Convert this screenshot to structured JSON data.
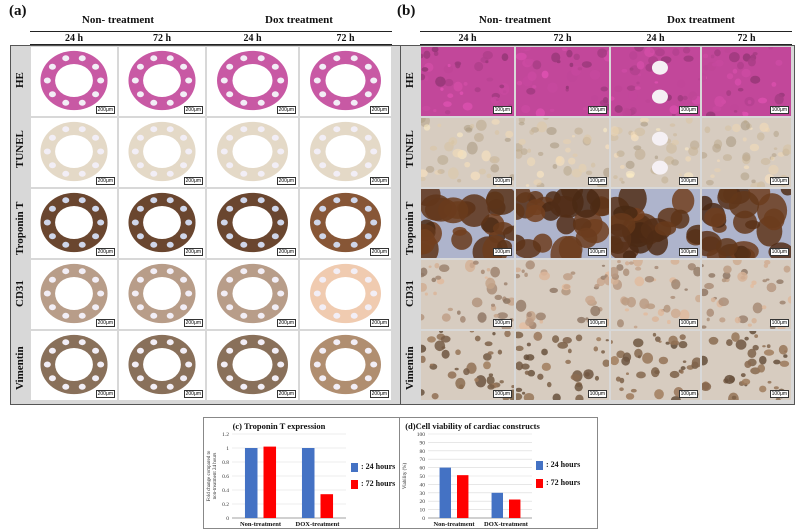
{
  "figure": {
    "panel_a_letter": "(a)",
    "panel_b_letter": "(b)",
    "group_labels": [
      "Non- treatment",
      "Dox treatment"
    ],
    "time_labels": [
      "24 h",
      "72 h",
      "24 h",
      "72 h"
    ],
    "row_labels": [
      "HE",
      "TUNEL",
      "Troponin T",
      "CD31",
      "Vimentin"
    ],
    "scale_bar_a": "200μm",
    "scale_bar_b": "100μm",
    "stain_colors": {
      "HE": "#c2479a",
      "TUNEL": "#cdb999",
      "Troponin T": "#5a3218",
      "CD31": "#b0927c",
      "Vimentin": "#7c6048"
    }
  },
  "chart_data": [
    {
      "type": "bar",
      "title": "(c) Troponin T expression",
      "ylabel": "Fold change compared to non-treatment 24 hours",
      "xlabel": "",
      "categories": [
        "Non-treatment",
        "DOX-treatment"
      ],
      "series": [
        {
          "name": ": 24 hours",
          "color": "#4472c4",
          "values": [
            1.0,
            1.0
          ]
        },
        {
          "name": ": 72 hours",
          "color": "#ff0000",
          "values": [
            1.02,
            0.34
          ]
        }
      ],
      "ylim": [
        0,
        1.2
      ],
      "yticks": [
        "0",
        "0.2",
        "0.4",
        "0.6",
        "0.8",
        "1",
        "1.2"
      ],
      "legend": "right"
    },
    {
      "type": "bar",
      "title": "(d)Cell viability of cardiac constructs",
      "ylabel": "Viability (%)",
      "xlabel": "",
      "categories": [
        "Non-treatment",
        "DOX-treatment"
      ],
      "series": [
        {
          "name": ": 24 hours",
          "color": "#4472c4",
          "values": [
            60,
            30
          ]
        },
        {
          "name": ": 72 hours",
          "color": "#ff0000",
          "values": [
            51,
            22
          ]
        }
      ],
      "ylim": [
        0,
        100
      ],
      "yticks": [
        "0",
        "10",
        "20",
        "30",
        "40",
        "50",
        "60",
        "70",
        "80",
        "90",
        "100"
      ],
      "legend": "right"
    }
  ]
}
